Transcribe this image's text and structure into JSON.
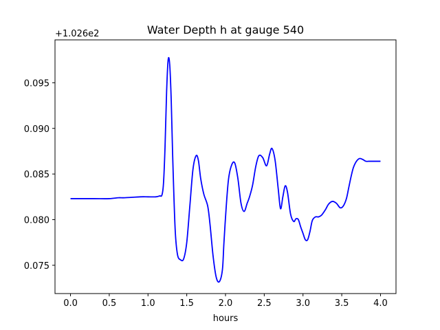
{
  "chart_data": {
    "type": "line",
    "title": "Water Depth h at gauge 540",
    "xlabel": "hours",
    "ylabel": "",
    "y_offset_label": "+1.026e2",
    "xlim": [
      -0.2,
      4.2
    ],
    "ylim": [
      0.0719,
      0.0997
    ],
    "xticks": [
      0.0,
      0.5,
      1.0,
      1.5,
      2.0,
      2.5,
      3.0,
      3.5,
      4.0
    ],
    "xtick_labels": [
      "0.0",
      "0.5",
      "1.0",
      "1.5",
      "2.0",
      "2.5",
      "3.0",
      "3.5",
      "4.0"
    ],
    "yticks": [
      0.075,
      0.08,
      0.085,
      0.09,
      0.095
    ],
    "ytick_labels": [
      "0.075",
      "0.080",
      "0.085",
      "0.090",
      "0.095"
    ],
    "grid": false,
    "line_color": "#0000ff",
    "series": [
      {
        "x": [
          0.0,
          0.3,
          0.5,
          0.62,
          0.7,
          0.9,
          1.0,
          1.1,
          1.15,
          1.18,
          1.2,
          1.22,
          1.24,
          1.26,
          1.28,
          1.3,
          1.32,
          1.35,
          1.38,
          1.42,
          1.46,
          1.5,
          1.54,
          1.58,
          1.62,
          1.65,
          1.68,
          1.72,
          1.77,
          1.8,
          1.84,
          1.88,
          1.92,
          1.96,
          1.98,
          2.01,
          2.04,
          2.08,
          2.12,
          2.16,
          2.2,
          2.24,
          2.28,
          2.31,
          2.35,
          2.39,
          2.43,
          2.48,
          2.53,
          2.57,
          2.6,
          2.64,
          2.68,
          2.71,
          2.74,
          2.77,
          2.8,
          2.84,
          2.88,
          2.91,
          2.94,
          2.97,
          3.0,
          3.03,
          3.06,
          3.09,
          3.12,
          3.16,
          3.2,
          3.24,
          3.29,
          3.33,
          3.38,
          3.43,
          3.48,
          3.52,
          3.56,
          3.59,
          3.62,
          3.65,
          3.69,
          3.73,
          3.77,
          3.81,
          3.85,
          3.88,
          3.91,
          3.94,
          3.97,
          4.0
        ],
        "y": [
          0.0823,
          0.0823,
          0.0823,
          0.0824,
          0.0824,
          0.0825,
          0.0825,
          0.0825,
          0.0826,
          0.0827,
          0.084,
          0.088,
          0.094,
          0.0975,
          0.097,
          0.093,
          0.0865,
          0.079,
          0.0762,
          0.0756,
          0.0757,
          0.0775,
          0.0815,
          0.0855,
          0.087,
          0.0865,
          0.0845,
          0.0828,
          0.0815,
          0.0795,
          0.076,
          0.0737,
          0.0732,
          0.0745,
          0.0775,
          0.0815,
          0.0845,
          0.086,
          0.0862,
          0.0845,
          0.0818,
          0.0809,
          0.0818,
          0.0825,
          0.0838,
          0.0858,
          0.087,
          0.0868,
          0.0859,
          0.0872,
          0.0878,
          0.0865,
          0.0834,
          0.0812,
          0.0825,
          0.0837,
          0.083,
          0.0806,
          0.0798,
          0.0801,
          0.08,
          0.0792,
          0.0785,
          0.0778,
          0.0778,
          0.0787,
          0.0799,
          0.0803,
          0.0803,
          0.0805,
          0.0811,
          0.0817,
          0.082,
          0.0818,
          0.0813,
          0.0815,
          0.0823,
          0.0835,
          0.0847,
          0.0857,
          0.0864,
          0.0867,
          0.0866,
          0.0864,
          0.0864,
          0.0864,
          0.0864,
          0.0864,
          0.0864,
          0.0864
        ]
      }
    ]
  }
}
